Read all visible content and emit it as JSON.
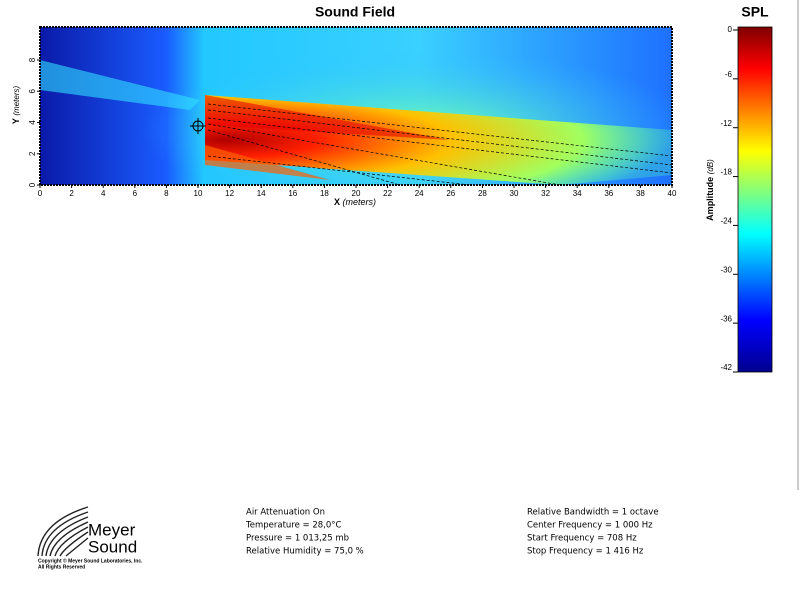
{
  "title": "Sound Field",
  "plot": {
    "x_label": "X",
    "x_unit": "(meters)",
    "y_label": "Y",
    "y_unit": "(meters)",
    "xticks": [
      0,
      2,
      4,
      6,
      8,
      10,
      12,
      14,
      16,
      18,
      20,
      22,
      24,
      26,
      28,
      30,
      32,
      34,
      36,
      38,
      40
    ],
    "yticks": [
      0,
      2,
      4,
      6,
      8
    ]
  },
  "colorbar": {
    "title": "SPL",
    "label": "Amplitude",
    "unit": "(dB)",
    "ticks": [
      0,
      -6,
      -12,
      -18,
      -24,
      -30,
      -36,
      -42
    ]
  },
  "footer": {
    "logo": {
      "line1": "Meyer",
      "line2": "Sound",
      "copyright": "Copyright © Meyer Sound Laboratories, Inc.",
      "rights": "All Rights Reserved"
    },
    "conditions": [
      "Air Attenuation On",
      "Temperature = 28,0°C",
      "Pressure = 1 013,25  mb",
      "Relative Humidity = 75,0 %"
    ],
    "frequency": [
      "Relative Bandwidth = 1 octave",
      "Center Frequency = 1 000 Hz",
      "Start Frequency = 708 Hz",
      "Stop Frequency = 1 416 Hz"
    ]
  }
}
